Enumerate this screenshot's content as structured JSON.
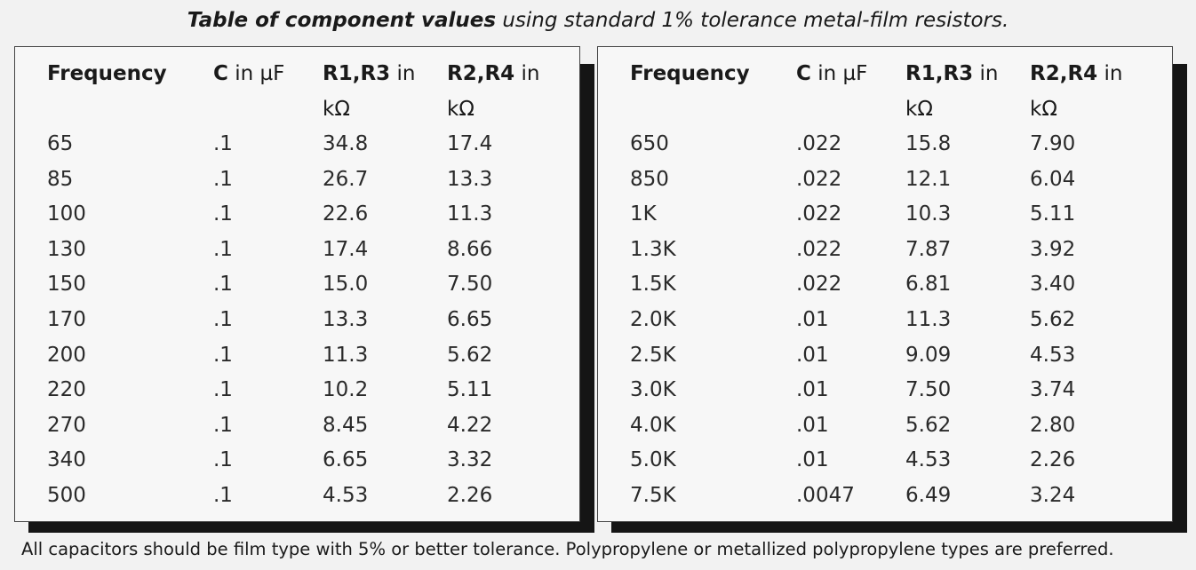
{
  "title": {
    "bold": "Table of component values",
    "rest": " using standard 1% tolerance metal-film resistors."
  },
  "headers": {
    "frequency": "Frequency",
    "c_bold": "C",
    "c_rest": " in µF",
    "r13_bold": "R1,R3",
    "r13_rest": " in kΩ",
    "r24_bold": "R2,R4",
    "r24_rest": " in kΩ"
  },
  "left_table": {
    "rows": [
      {
        "frequency": "65",
        "c": ".1",
        "r13": "34.8",
        "r24": "17.4"
      },
      {
        "frequency": "85",
        "c": ".1",
        "r13": "26.7",
        "r24": "13.3"
      },
      {
        "frequency": "100",
        "c": ".1",
        "r13": "22.6",
        "r24": "11.3"
      },
      {
        "frequency": "130",
        "c": ".1",
        "r13": "17.4",
        "r24": "8.66"
      },
      {
        "frequency": "150",
        "c": ".1",
        "r13": "15.0",
        "r24": "7.50"
      },
      {
        "frequency": "170",
        "c": ".1",
        "r13": "13.3",
        "r24": "6.65"
      },
      {
        "frequency": "200",
        "c": ".1",
        "r13": "11.3",
        "r24": "5.62"
      },
      {
        "frequency": "220",
        "c": ".1",
        "r13": "10.2",
        "r24": "5.11"
      },
      {
        "frequency": "270",
        "c": ".1",
        "r13": "8.45",
        "r24": "4.22"
      },
      {
        "frequency": "340",
        "c": ".1",
        "r13": "6.65",
        "r24": "3.32"
      },
      {
        "frequency": "500",
        "c": ".1",
        "r13": "4.53",
        "r24": "2.26"
      }
    ]
  },
  "right_table": {
    "rows": [
      {
        "frequency": "650",
        "c": ".022",
        "r13": "15.8",
        "r24": "7.90"
      },
      {
        "frequency": "850",
        "c": ".022",
        "r13": "12.1",
        "r24": "6.04"
      },
      {
        "frequency": "1K",
        "c": ".022",
        "r13": "10.3",
        "r24": "5.11"
      },
      {
        "frequency": "1.3K",
        "c": ".022",
        "r13": "7.87",
        "r24": "3.92"
      },
      {
        "frequency": "1.5K",
        "c": ".022",
        "r13": "6.81",
        "r24": "3.40"
      },
      {
        "frequency": "2.0K",
        "c": ".01",
        "r13": "11.3",
        "r24": "5.62"
      },
      {
        "frequency": "2.5K",
        "c": ".01",
        "r13": "9.09",
        "r24": "4.53"
      },
      {
        "frequency": "3.0K",
        "c": ".01",
        "r13": "7.50",
        "r24": "3.74"
      },
      {
        "frequency": "4.0K",
        "c": ".01",
        "r13": "5.62",
        "r24": "2.80"
      },
      {
        "frequency": "5.0K",
        "c": ".01",
        "r13": "4.53",
        "r24": "2.26"
      },
      {
        "frequency": "7.5K",
        "c": ".0047",
        "r13": "6.49",
        "r24": "3.24"
      }
    ]
  },
  "footnote": "All capacitors should be film type with 5% or better tolerance.  Polypropylene or metallized polypropylene types are preferred.",
  "colors": {
    "background": "#f2f2f2",
    "panel": "#f7f7f7",
    "shadow": "#151515",
    "text": "#1a1a1a"
  }
}
